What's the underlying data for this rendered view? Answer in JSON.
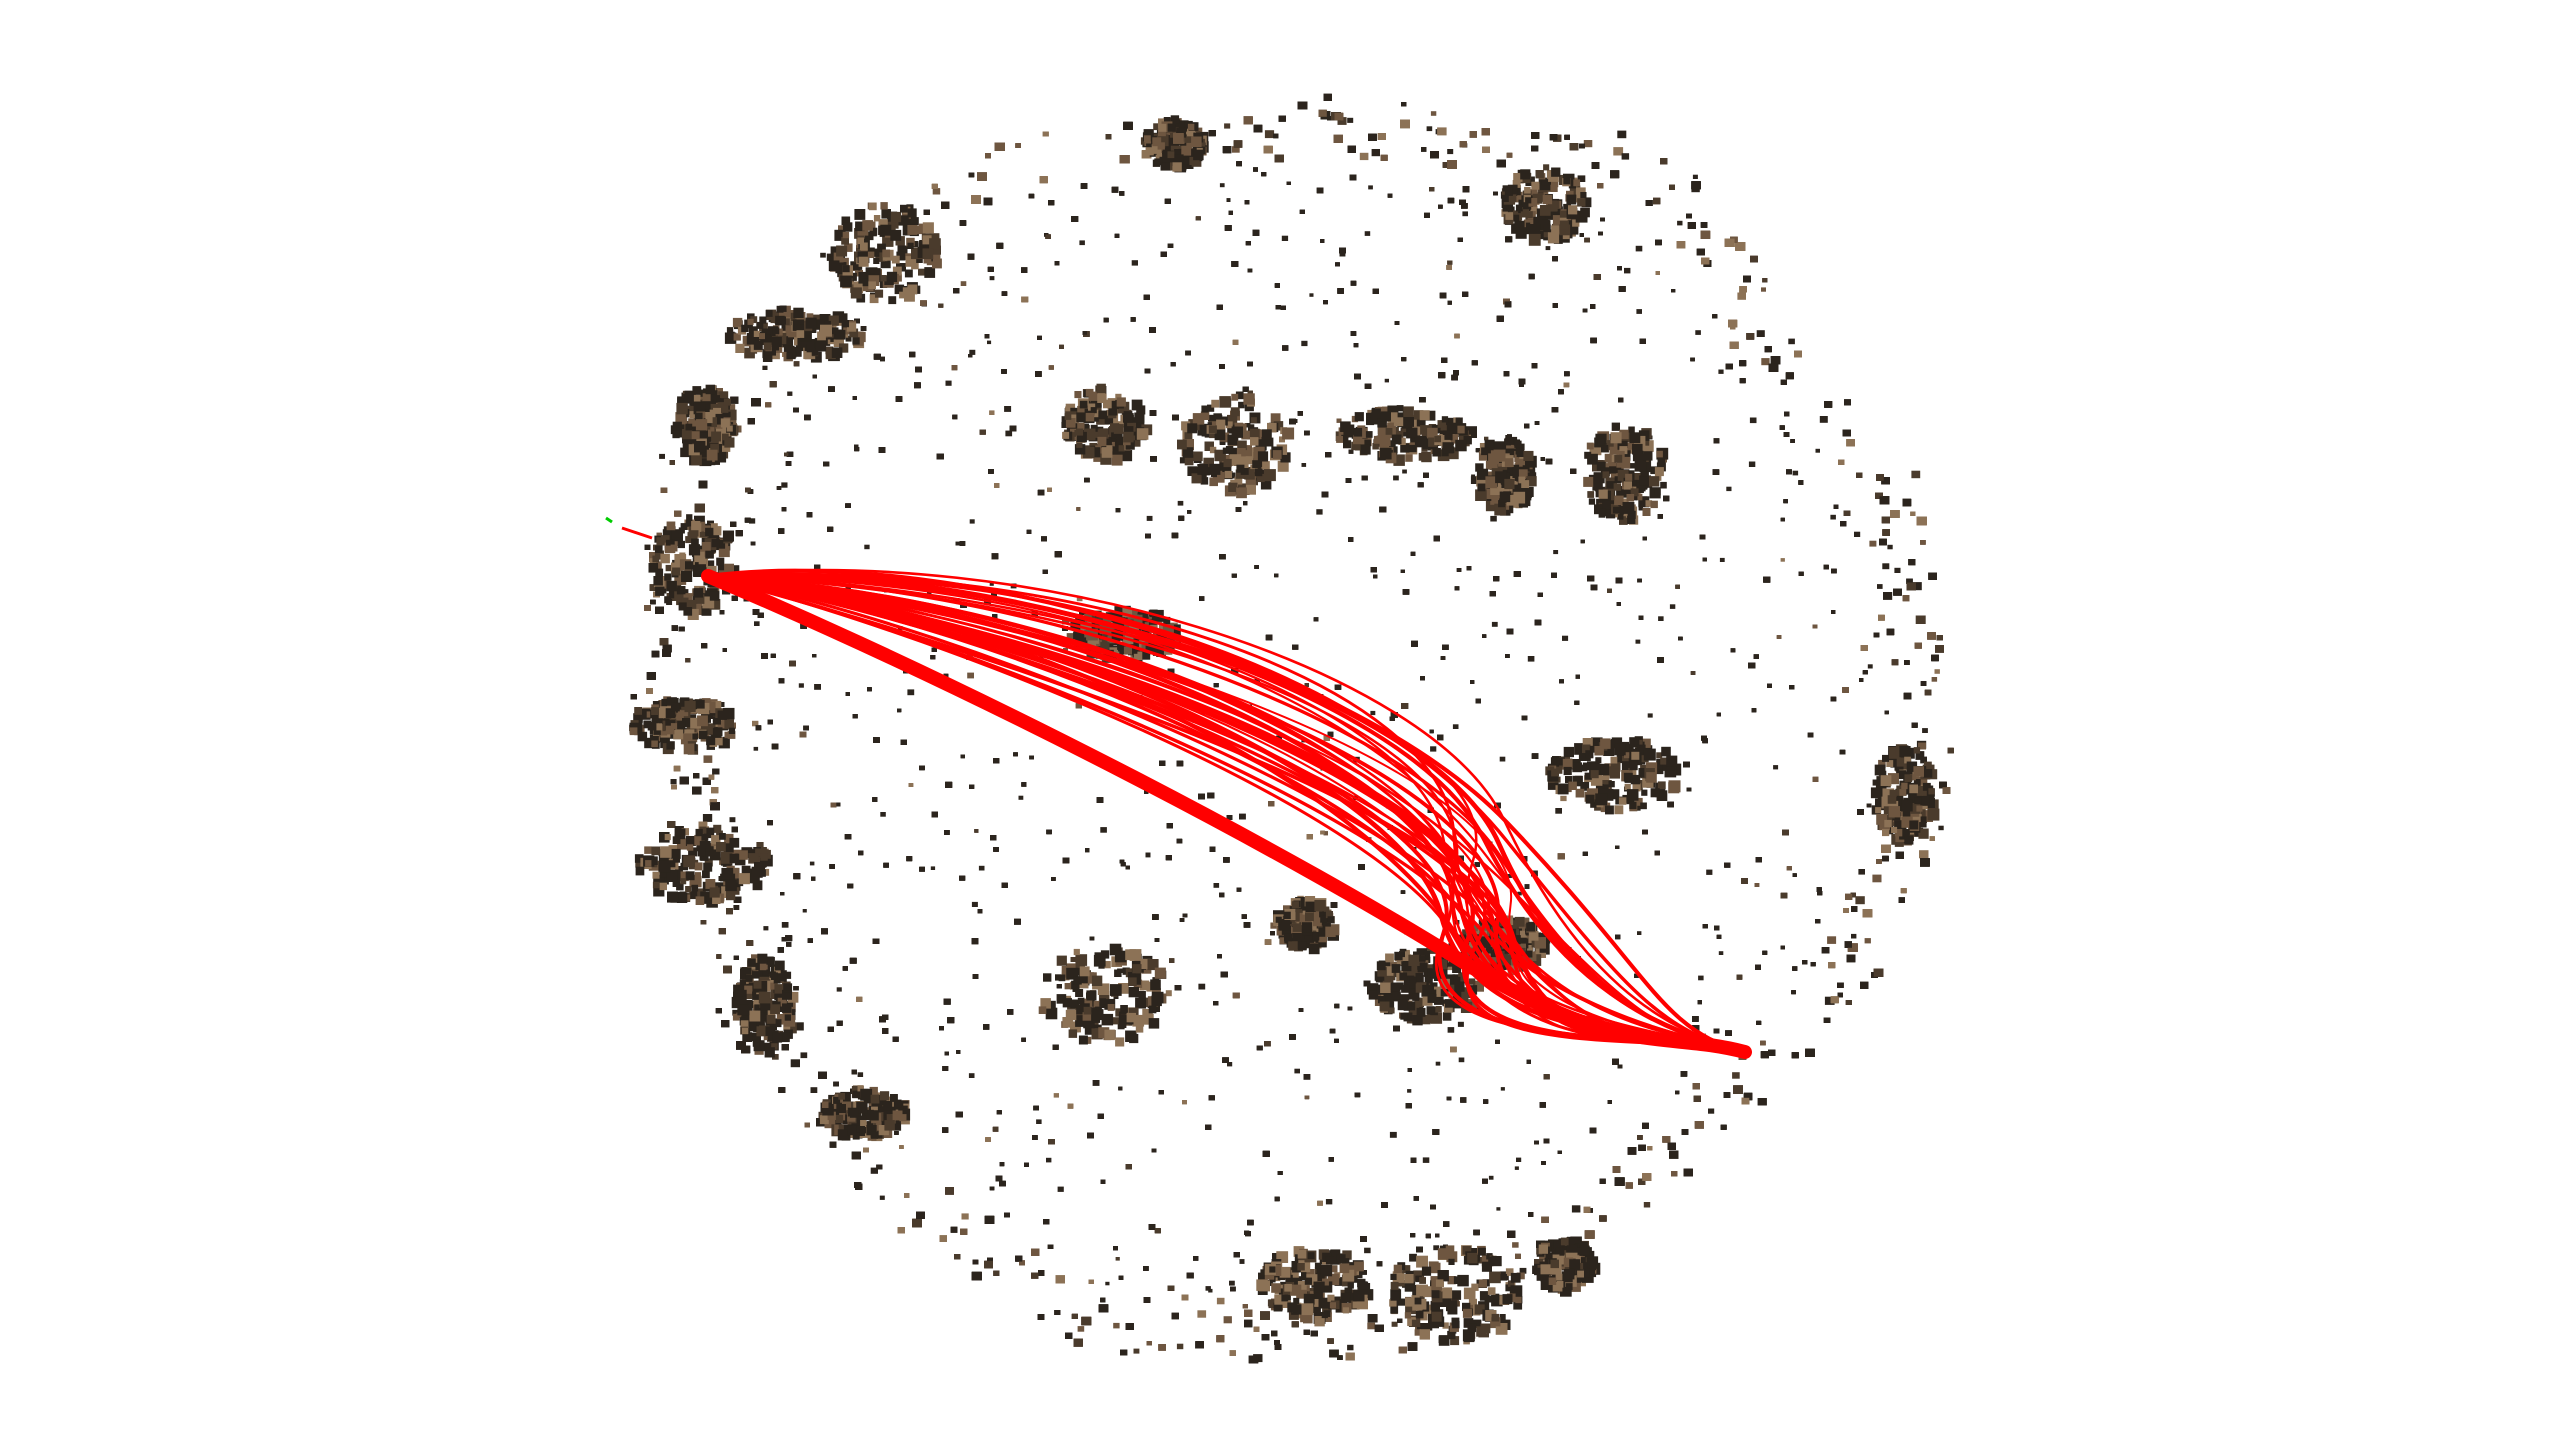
{
  "viewer": {
    "background_color": "#ffffff",
    "point_cloud": {
      "colors": {
        "dark": "#2b241d",
        "mid": "#4a3b2c",
        "brown": "#6e5640",
        "tan": "#8c7256"
      }
    },
    "trajectory": {
      "color": "#ff0000"
    },
    "axes": {
      "x_color": "#ff0000",
      "y_color": "#00cc00"
    }
  }
}
